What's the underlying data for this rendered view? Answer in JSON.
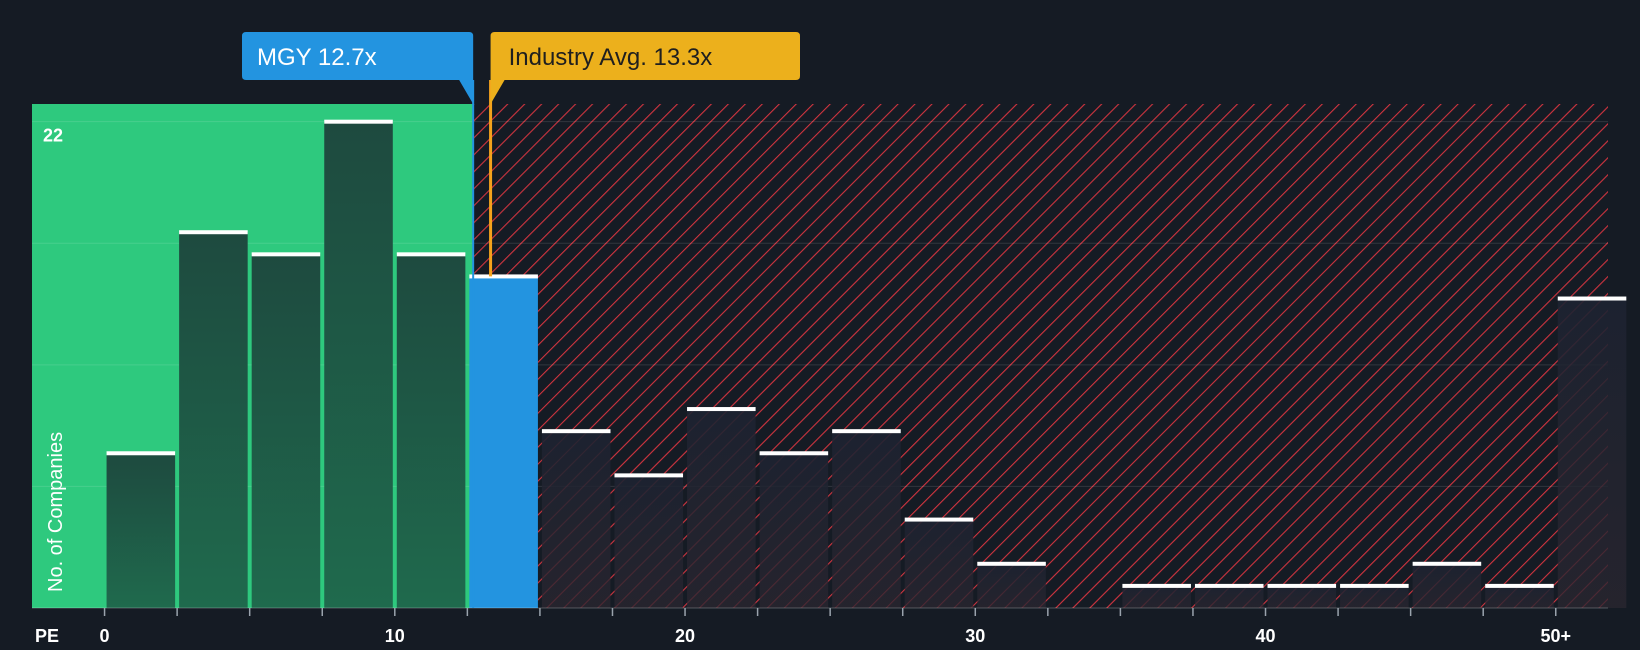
{
  "chart_data": {
    "type": "bar",
    "title": "",
    "xlabel": "PE",
    "ylabel": "No. of Companies",
    "ytick_label": "22",
    "ymax_value": 22,
    "xlim": [
      -2.5,
      51.8
    ],
    "ylim": [
      0,
      22.8
    ],
    "xticks": [
      {
        "value": 0,
        "label": "0"
      },
      {
        "value": 10,
        "label": "10"
      },
      {
        "value": 20,
        "label": "20"
      },
      {
        "value": 30,
        "label": "30"
      },
      {
        "value": 40,
        "label": "40"
      },
      {
        "value": 50,
        "label": "50+"
      }
    ],
    "bin_width": 2.5,
    "bins": [
      {
        "start": 0,
        "count": 7
      },
      {
        "start": 2.5,
        "count": 17
      },
      {
        "start": 5,
        "count": 16
      },
      {
        "start": 7.5,
        "count": 22
      },
      {
        "start": 10,
        "count": 16
      },
      {
        "start": 12.5,
        "count": 15
      },
      {
        "start": 15,
        "count": 8
      },
      {
        "start": 17.5,
        "count": 6
      },
      {
        "start": 20,
        "count": 9
      },
      {
        "start": 22.5,
        "count": 7
      },
      {
        "start": 25,
        "count": 8
      },
      {
        "start": 27.5,
        "count": 4
      },
      {
        "start": 30,
        "count": 2
      },
      {
        "start": 32.5,
        "count": 0
      },
      {
        "start": 35,
        "count": 1
      },
      {
        "start": 37.5,
        "count": 1
      },
      {
        "start": 40,
        "count": 1
      },
      {
        "start": 42.5,
        "count": 1
      },
      {
        "start": 45,
        "count": 2
      },
      {
        "start": 47.5,
        "count": 1
      },
      {
        "start": 50,
        "count": 14
      }
    ],
    "company": {
      "ticker": "MGY",
      "pe": 12.7,
      "label": "MGY 12.7x"
    },
    "industry": {
      "avg_pe": 13.3,
      "label": "Industry Avg. 13.3x"
    }
  },
  "colors": {
    "background": "#151b24",
    "undervalued_zone": "#2ec97e",
    "overvalued_hatch": "#d0343f",
    "bar_in_green": "#1e4a3f",
    "bar_in_red": "#1e2430",
    "company_bar": "#2394e0",
    "company_callout": "#2394e0",
    "industry_callout": "#ecb01c",
    "industry_line": "#f5a21c",
    "bar_cap": "#ffffff"
  }
}
